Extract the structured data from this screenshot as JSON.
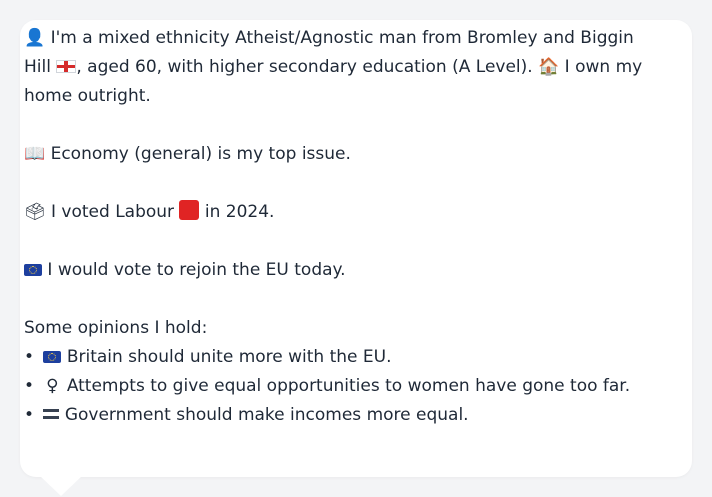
{
  "profile": {
    "intro_part1": "I'm a mixed ethnicity Atheist/Agnostic man from Bromley and Biggin Hill",
    "intro_part2": ", aged 60, with higher secondary education (A Level).",
    "intro_part3": "I own my home outright.",
    "top_issue": "Economy (general) is my top issue.",
    "vote_prefix": "I voted Labour",
    "vote_suffix": "in 2024.",
    "eu_vote": "I would vote to rejoin the EU today.",
    "opinions_label": "Some opinions I hold:",
    "opinions": [
      "Britain should unite more with the EU.",
      "Attempts to give equal opportunities to women have gone too far.",
      "Government should make incomes more equal."
    ]
  },
  "icons": {
    "person": "👤",
    "house": "🏠",
    "book": "📖",
    "ballot": "🗳",
    "female": "♀"
  },
  "colors": {
    "background": "#f3f4f6",
    "card": "#ffffff",
    "text": "#1f2937",
    "labour_red": "#e02424",
    "eu_blue": "#1d3f9e"
  }
}
